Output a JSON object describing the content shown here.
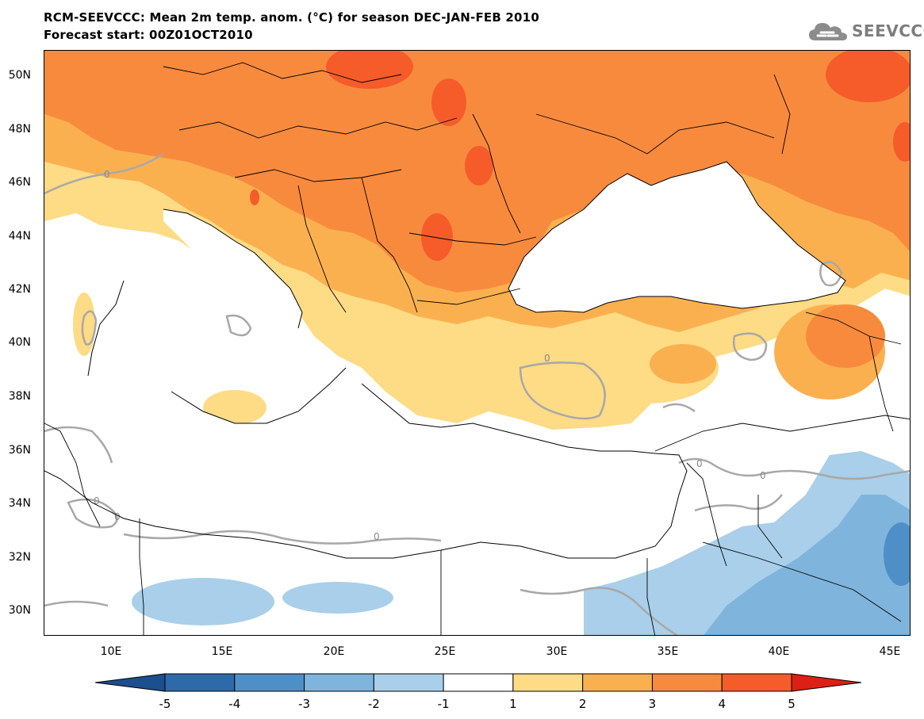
{
  "header": {
    "title": "RCM-SEEVCCC: Mean 2m temp. anom. (°C) for season DEC-JAN-FEB 2010",
    "subtitle": "Forecast start: 00Z01OCT2010",
    "logo_text": "SEEVCCC"
  },
  "axes": {
    "lat_labels": [
      "50N",
      "48N",
      "46N",
      "44N",
      "42N",
      "40N",
      "38N",
      "36N",
      "34N",
      "32N",
      "30N"
    ],
    "lon_labels": [
      "10E",
      "15E",
      "20E",
      "25E",
      "30E",
      "35E",
      "40E",
      "45E"
    ]
  },
  "map": {
    "contour_label": "0",
    "extent": {
      "lon": [
        7,
        46
      ],
      "lat": [
        29,
        51
      ]
    }
  },
  "colorbar": {
    "ticks": [
      "-5",
      "-4",
      "-3",
      "-2",
      "-1",
      "1",
      "2",
      "3",
      "4",
      "5"
    ],
    "colors": [
      "#1c4f8e",
      "#2e6aaa",
      "#4f8fc8",
      "#7fb4dc",
      "#a9cfea",
      "#ffffff",
      "#fedb85",
      "#fbb050",
      "#f88a3e",
      "#f55c2a",
      "#dd2015"
    ]
  }
}
